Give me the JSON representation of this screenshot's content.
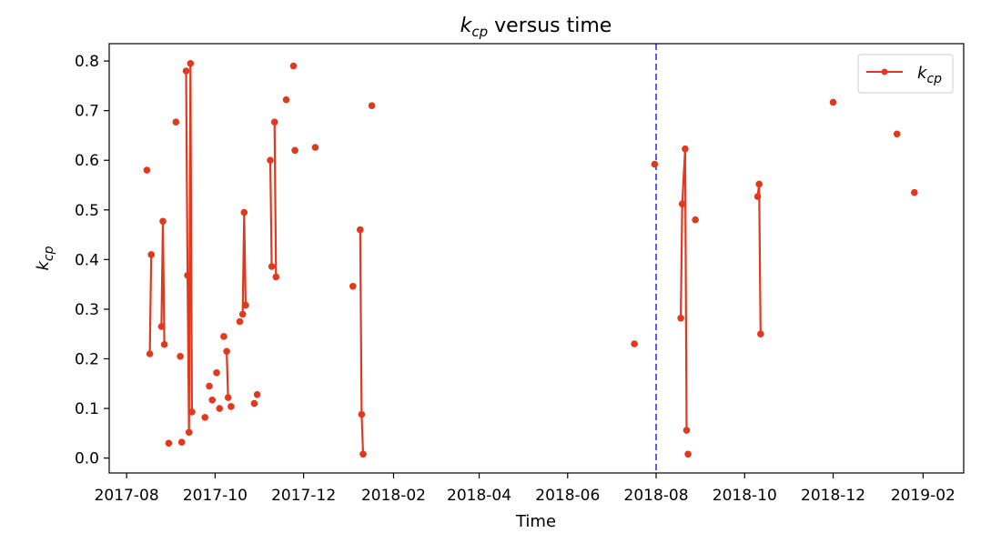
{
  "chart_data": {
    "type": "line",
    "title_symbol": "k",
    "title_subscript": "cp",
    "title_suffix": " versus time",
    "xlabel": "Time",
    "ylabel_symbol": "k",
    "ylabel_subscript": "cp",
    "legend": {
      "symbol": "k",
      "subscript": "cp",
      "placement": "top-right"
    },
    "series_color": "#e0391e",
    "vline": {
      "x": "2018-08-01",
      "color": "#5a5af0",
      "style": "dashed"
    },
    "xlim": [
      "2017-07-20",
      "2019-03-01"
    ],
    "ylim": [
      -0.03,
      0.835
    ],
    "x_ticks": [
      "2017-08",
      "2017-10",
      "2017-12",
      "2018-02",
      "2018-04",
      "2018-06",
      "2018-08",
      "2018-10",
      "2018-12",
      "2019-02"
    ],
    "y_ticks": [
      "0.0",
      "0.1",
      "0.2",
      "0.3",
      "0.4",
      "0.5",
      "0.6",
      "0.7",
      "0.8"
    ],
    "segments": [
      [
        [
          "2017-08-15",
          0.58
        ]
      ],
      [
        [
          "2017-08-17",
          0.21
        ],
        [
          "2017-08-18",
          0.41
        ]
      ],
      [
        [
          "2017-08-25",
          0.265
        ],
        [
          "2017-08-26",
          0.477
        ],
        [
          "2017-08-27",
          0.229
        ]
      ],
      [
        [
          "2017-08-30",
          0.03
        ]
      ],
      [
        [
          "2017-09-04",
          0.677
        ]
      ],
      [
        [
          "2017-09-07",
          0.205
        ]
      ],
      [
        [
          "2017-09-08",
          0.032
        ]
      ],
      [
        [
          "2017-09-11",
          0.78
        ],
        [
          "2017-09-12",
          0.368
        ],
        [
          "2017-09-13",
          0.052
        ],
        [
          "2017-09-14",
          0.795
        ],
        [
          "2017-09-15",
          0.093
        ]
      ],
      [
        [
          "2017-09-24",
          0.082
        ]
      ],
      [
        [
          "2017-09-27",
          0.145
        ]
      ],
      [
        [
          "2017-09-29",
          0.117
        ]
      ],
      [
        [
          "2017-10-02",
          0.172
        ]
      ],
      [
        [
          "2017-10-04",
          0.1
        ]
      ],
      [
        [
          "2017-10-07",
          0.245
        ]
      ],
      [
        [
          "2017-10-09",
          0.215
        ],
        [
          "2017-10-10",
          0.122
        ]
      ],
      [
        [
          "2017-10-12",
          0.104
        ]
      ],
      [
        [
          "2017-10-18",
          0.275
        ]
      ],
      [
        [
          "2017-10-20",
          0.29
        ],
        [
          "2017-10-21",
          0.495
        ],
        [
          "2017-10-22",
          0.308
        ]
      ],
      [
        [
          "2017-10-28",
          0.11
        ]
      ],
      [
        [
          "2017-10-30",
          0.128
        ]
      ],
      [
        [
          "2017-11-08",
          0.6
        ],
        [
          "2017-11-09",
          0.386
        ]
      ],
      [
        [
          "2017-11-11",
          0.677
        ],
        [
          "2017-11-12",
          0.365
        ]
      ],
      [
        [
          "2017-11-19",
          0.722
        ]
      ],
      [
        [
          "2017-11-24",
          0.79
        ]
      ],
      [
        [
          "2017-11-25",
          0.62
        ]
      ],
      [
        [
          "2017-12-09",
          0.626
        ]
      ],
      [
        [
          "2018-01-04",
          0.346
        ]
      ],
      [
        [
          "2018-01-09",
          0.46
        ],
        [
          "2018-01-10",
          0.088
        ],
        [
          "2018-01-11",
          0.008
        ]
      ],
      [
        [
          "2018-01-17",
          0.71
        ]
      ],
      [
        [
          "2018-07-17",
          0.23
        ]
      ],
      [
        [
          "2018-07-31",
          0.592
        ]
      ],
      [
        [
          "2018-08-18",
          0.282
        ],
        [
          "2018-08-19",
          0.512
        ],
        [
          "2018-08-21",
          0.623
        ],
        [
          "2018-08-22",
          0.056
        ]
      ],
      [
        [
          "2018-08-23",
          0.008
        ]
      ],
      [
        [
          "2018-08-28",
          0.48
        ]
      ],
      [
        [
          "2018-10-10",
          0.527
        ],
        [
          "2018-10-11",
          0.552
        ],
        [
          "2018-10-12",
          0.25
        ]
      ],
      [
        [
          "2018-12-01",
          0.717
        ]
      ],
      [
        [
          "2019-01-14",
          0.653
        ]
      ],
      [
        [
          "2019-01-26",
          0.535
        ]
      ]
    ]
  }
}
